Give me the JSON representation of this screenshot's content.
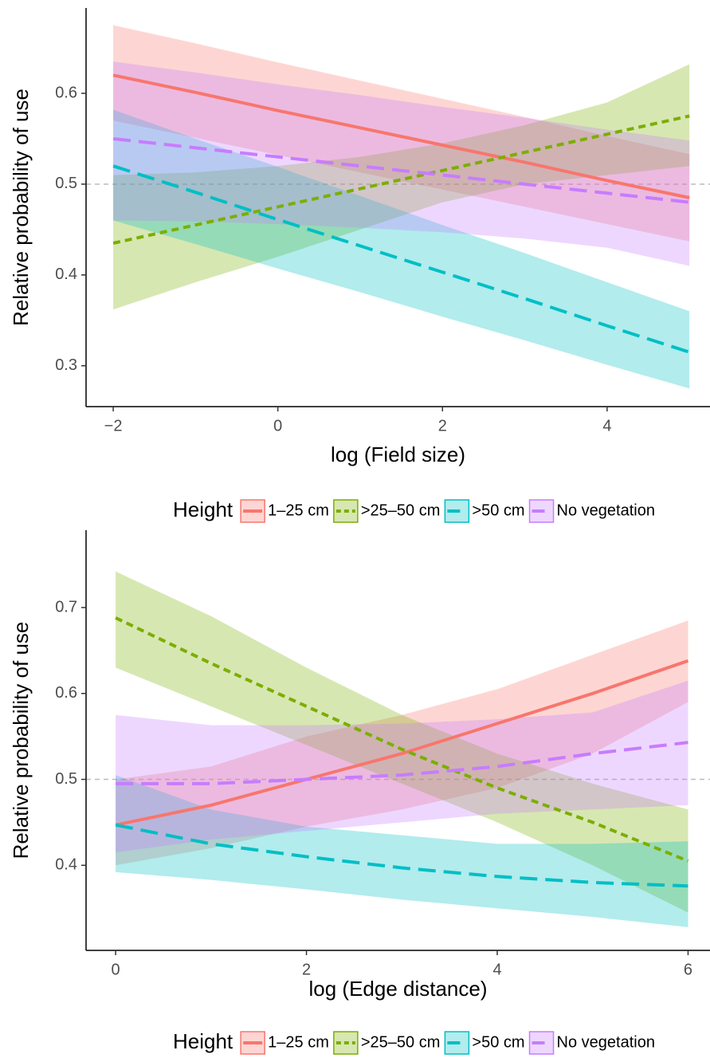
{
  "chart_data": [
    {
      "type": "line",
      "xlabel": "log (Field size)",
      "ylabel": "Relative probability of use",
      "x": [
        -2,
        -1,
        0,
        1,
        2,
        3,
        4,
        5
      ],
      "xlim": [
        -2.33,
        5.25
      ],
      "xticks": [
        {
          "value": -2,
          "label": "−2"
        },
        0,
        2,
        4
      ],
      "ylim": [
        0.255,
        0.694
      ],
      "yticks": [
        0.3,
        0.4,
        0.5,
        0.6
      ],
      "reference_line": 0.5,
      "legend_title": "Height",
      "legend": "bottom",
      "series": [
        {
          "name": "1–25 cm",
          "color": "#f8766d",
          "linestyle": "solid",
          "values": [
            0.62,
            0.601,
            0.581,
            0.562,
            0.543,
            0.524,
            0.504,
            0.485
          ],
          "lower": [
            0.57,
            0.551,
            0.532,
            0.513,
            0.494,
            0.475,
            0.456,
            0.437
          ],
          "upper": [
            0.675,
            0.655,
            0.634,
            0.614,
            0.594,
            0.574,
            0.553,
            0.533
          ]
        },
        {
          "name": ">25–50 cm",
          "color": "#7cae00",
          "linestyle": "dotted",
          "values": [
            0.435,
            0.455,
            0.475,
            0.495,
            0.515,
            0.535,
            0.555,
            0.575
          ],
          "lower": [
            0.362,
            0.392,
            0.42,
            0.45,
            0.48,
            0.5,
            0.51,
            0.52
          ],
          "upper": [
            0.51,
            0.513,
            0.52,
            0.53,
            0.545,
            0.565,
            0.59,
            0.632
          ]
        },
        {
          "name": ">50 cm",
          "color": "#00bfc4",
          "linestyle": "dashed",
          "values": [
            0.52,
            0.491,
            0.461,
            0.432,
            0.403,
            0.374,
            0.344,
            0.315
          ],
          "lower": [
            0.46,
            0.434,
            0.407,
            0.381,
            0.354,
            0.328,
            0.301,
            0.275
          ],
          "upper": [
            0.582,
            0.55,
            0.519,
            0.487,
            0.455,
            0.424,
            0.392,
            0.36
          ]
        },
        {
          "name": "No vegetation",
          "color": "#c77cff",
          "linestyle": "dashed",
          "values": [
            0.55,
            0.54,
            0.53,
            0.52,
            0.51,
            0.5,
            0.49,
            0.48
          ],
          "lower": [
            0.46,
            0.459,
            0.456,
            0.452,
            0.447,
            0.44,
            0.43,
            0.41
          ],
          "upper": [
            0.635,
            0.623,
            0.61,
            0.598,
            0.585,
            0.573,
            0.56,
            0.548
          ]
        }
      ]
    },
    {
      "type": "line",
      "xlabel": "log (Edge distance)",
      "ylabel": "Relative probability of use",
      "x": [
        0,
        1,
        2,
        3,
        4,
        5,
        6
      ],
      "xlim": [
        -0.31,
        6.23
      ],
      "xticks": [
        0,
        2,
        4,
        6
      ],
      "ylim": [
        0.301,
        0.79
      ],
      "yticks": [
        0.4,
        0.5,
        0.6,
        0.7
      ],
      "reference_line": 0.5,
      "legend_title": "Height",
      "legend": "bottom",
      "series": [
        {
          "name": "1–25 cm",
          "color": "#f8766d",
          "linestyle": "solid",
          "values": [
            0.447,
            0.47,
            0.5,
            0.53,
            0.565,
            0.6,
            0.638
          ],
          "lower": [
            0.4,
            0.42,
            0.445,
            0.465,
            0.49,
            0.53,
            0.59
          ],
          "upper": [
            0.5,
            0.515,
            0.55,
            0.575,
            0.605,
            0.645,
            0.685
          ]
        },
        {
          "name": ">25–50 cm",
          "color": "#7cae00",
          "linestyle": "dotted",
          "values": [
            0.688,
            0.635,
            0.585,
            0.535,
            0.49,
            0.45,
            0.405
          ],
          "lower": [
            0.63,
            0.585,
            0.54,
            0.495,
            0.45,
            0.4,
            0.345
          ],
          "upper": [
            0.742,
            0.69,
            0.63,
            0.575,
            0.53,
            0.495,
            0.465
          ]
        },
        {
          "name": ">50 cm",
          "color": "#00bfc4",
          "linestyle": "dashed",
          "values": [
            0.447,
            0.425,
            0.41,
            0.397,
            0.387,
            0.38,
            0.376
          ],
          "lower": [
            0.392,
            0.383,
            0.372,
            0.36,
            0.35,
            0.34,
            0.328
          ],
          "upper": [
            0.505,
            0.465,
            0.445,
            0.435,
            0.425,
            0.425,
            0.428
          ]
        },
        {
          "name": "No vegetation",
          "color": "#c77cff",
          "linestyle": "dashed",
          "values": [
            0.495,
            0.495,
            0.5,
            0.505,
            0.515,
            0.53,
            0.543
          ],
          "lower": [
            0.415,
            0.43,
            0.44,
            0.45,
            0.46,
            0.465,
            0.47
          ],
          "upper": [
            0.575,
            0.563,
            0.563,
            0.565,
            0.57,
            0.578,
            0.615
          ]
        }
      ]
    }
  ]
}
